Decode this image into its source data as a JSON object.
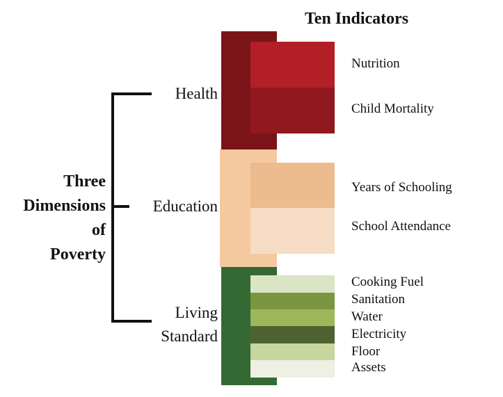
{
  "title": "Ten Indicators",
  "dimensions_title": [
    "Three",
    "Dimensions",
    "of",
    "Poverty"
  ],
  "dimensions": [
    {
      "label": "Health",
      "color": "#7b1419",
      "indicators": [
        {
          "label": "Nutrition",
          "color": "#b21f26"
        },
        {
          "label": "Child Mortality",
          "color": "#8f191e"
        }
      ]
    },
    {
      "label": "Education",
      "color": "#f4c9a0",
      "indicators": [
        {
          "label": "Years of Schooling",
          "color": "#ecbb8e"
        },
        {
          "label": "School Attendance",
          "color": "#f6dcc5"
        }
      ]
    },
    {
      "label_lines": [
        "Living",
        "Standard"
      ],
      "color": "#356933",
      "indicators": [
        {
          "label": "Cooking Fuel",
          "color": "#dae5c4"
        },
        {
          "label": "Sanitation",
          "color": "#7a9640"
        },
        {
          "label": "Water",
          "color": "#9db75a"
        },
        {
          "label": "Electricity",
          "color": "#4e6231"
        },
        {
          "label": "Floor",
          "color": "#c6d69e"
        },
        {
          "label": "Assets",
          "color": "#edf0e3"
        }
      ]
    }
  ]
}
